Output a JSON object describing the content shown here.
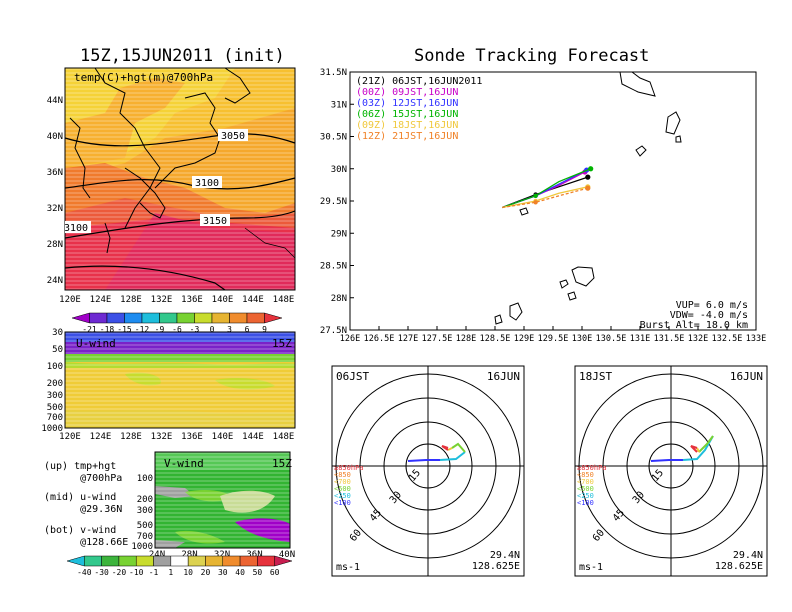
{
  "left_title": "15Z,15JUN2011 (init)",
  "main_title": "Sonde Tracking Forecast",
  "map_panel": {
    "label": "temp(C)+hgt(m)@700hPa",
    "contour_labels": [
      "3050",
      "3100",
      "3150",
      "3100"
    ],
    "y_ticks": [
      "44N",
      "40N",
      "36N",
      "32N",
      "28N",
      "24N"
    ],
    "x_ticks": [
      "120E",
      "124E",
      "128E",
      "132E",
      "136E",
      "140E",
      "144E",
      "148E"
    ],
    "colorbar_labels": [
      "-21",
      "-18",
      "-15",
      "-12",
      "-9",
      "-6",
      "-3",
      "0",
      "3",
      "6",
      "9"
    ],
    "colorbar_colors": [
      "#a000c8",
      "#6e2ad2",
      "#3c50e6",
      "#1e8cf0",
      "#1ebedc",
      "#32c88c",
      "#78d232",
      "#c8dc2d",
      "#e6b432",
      "#f08c2d",
      "#ec6432",
      "#e6323c"
    ]
  },
  "uwind_panel": {
    "label": "U-wind",
    "time": "15Z",
    "y_ticks": [
      "30",
      "50",
      "100",
      "200",
      "300",
      "500",
      "700",
      "1000"
    ],
    "x_ticks": [
      "120E",
      "124E",
      "128E",
      "132E",
      "136E",
      "140E",
      "144E",
      "148E"
    ]
  },
  "vwind_panel": {
    "label": "V-wind",
    "time": "15Z",
    "y_ticks": [
      "100",
      "200",
      "300",
      "500",
      "700",
      "1000"
    ],
    "x_ticks": [
      "24N",
      "28N",
      "32N",
      "36N",
      "40N"
    ]
  },
  "wind_colorbar": {
    "labels": [
      "-40",
      "-30",
      "-20",
      "-10",
      "-1",
      "1",
      "10",
      "20",
      "30",
      "40",
      "50",
      "60"
    ],
    "colors": [
      "#1ebedc",
      "#32c88c",
      "#3cb43c",
      "#78d232",
      "#c8dc2d",
      "#a0a0a0",
      "#ffffff",
      "#dcd250",
      "#e6b432",
      "#f08c2d",
      "#ec6432",
      "#e6323c",
      "#c81e50"
    ]
  },
  "notes": {
    "up": "(up) tmp+hgt\n      @700hPa",
    "mid": "(mid) u-wind\n      @29.36N",
    "bot": "(bot) v-wind\n      @128.66E"
  },
  "track_panel": {
    "legend": [
      {
        "text": "(21Z) 06JST,16JUN2011",
        "color": "#000000"
      },
      {
        "text": "(00Z) 09JST,16JUN",
        "color": "#c800c8"
      },
      {
        "text": "(03Z) 12JST,16JUN",
        "color": "#3232ff"
      },
      {
        "text": "(06Z) 15JST,16JUN",
        "color": "#00b400"
      },
      {
        "text": "(09Z) 18JST,16JUN",
        "color": "#f0c83c"
      },
      {
        "text": "(12Z) 21JST,16JUN",
        "color": "#f08228"
      }
    ],
    "y_ticks": [
      "31.5N",
      "31N",
      "30.5N",
      "30N",
      "29.5N",
      "29N",
      "28.5N",
      "28N",
      "27.5N"
    ],
    "x_ticks": [
      "126E",
      "126.5E",
      "127E",
      "127.5E",
      "128E",
      "128.5E",
      "129E",
      "129.5E",
      "130E",
      "130.5E",
      "131E",
      "131.5E",
      "132E",
      "132.5E",
      "133E"
    ],
    "params": [
      "VUP=  6.0 m/s",
      "VDW= -4.0 m/s",
      "Burst Alt= 18.0 km"
    ]
  },
  "chart_data": [
    {
      "type": "line",
      "title": "Sonde Tracking Forecast",
      "xlim": [
        126,
        133
      ],
      "ylim": [
        27.5,
        31.5
      ],
      "launch": [
        128.625,
        29.4
      ],
      "series": [
        {
          "name": "(21Z) 06JST,16JUN2011",
          "x": [
            128.625,
            129.2,
            129.6,
            130.1
          ],
          "y": [
            29.4,
            29.6,
            29.72,
            29.87
          ]
        },
        {
          "name": "(00Z) 09JST,16JUN",
          "x": [
            128.625,
            129.2,
            129.6,
            130.05
          ],
          "y": [
            29.4,
            29.58,
            29.74,
            29.95
          ]
        },
        {
          "name": "(03Z) 12JST,16JUN",
          "x": [
            128.625,
            129.2,
            129.6,
            130.08
          ],
          "y": [
            29.4,
            29.58,
            29.76,
            29.98
          ]
        },
        {
          "name": "(06Z) 15JST,16JUN",
          "x": [
            128.625,
            129.2,
            129.6,
            130.15
          ],
          "y": [
            29.4,
            29.58,
            29.8,
            30.0
          ]
        },
        {
          "name": "(09Z) 18JST,16JUN",
          "x": [
            128.625,
            129.2,
            129.6,
            130.1
          ],
          "y": [
            29.4,
            29.5,
            29.62,
            29.72
          ]
        },
        {
          "name": "(12Z) 21JST,16JUN",
          "x": [
            128.625,
            129.2,
            129.6,
            130.1
          ],
          "y": [
            29.4,
            29.48,
            29.58,
            29.7
          ]
        }
      ]
    },
    {
      "type": "polar",
      "title": "06JST",
      "date": "16JUN",
      "ring_labels": [
        "15",
        "30",
        "45",
        "60"
      ],
      "unit": "ms-1",
      "location": [
        "29.4N",
        "128.625E"
      ],
      "level_legend": [
        "≥850hPa",
        "<850",
        "<700",
        "<500",
        "<250",
        "<100"
      ]
    },
    {
      "type": "polar",
      "title": "18JST",
      "date": "16JUN",
      "ring_labels": [
        "15",
        "30",
        "45",
        "60"
      ],
      "unit": "ms-1",
      "location": [
        "29.4N",
        "128.625E"
      ],
      "level_legend": [
        "≥850hPa",
        "<850",
        "<700",
        "<500",
        "<250",
        "<100"
      ]
    }
  ]
}
